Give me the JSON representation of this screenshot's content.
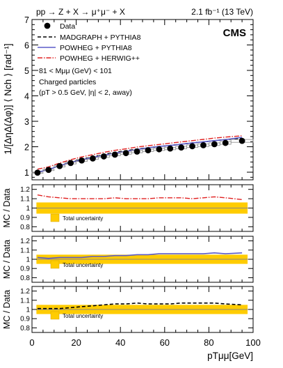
{
  "header": {
    "process": "pp → Z + X → μ⁺μ⁻ + X",
    "luminosity": "2.1 fb⁻¹ (13 TeV)",
    "experiment": "CMS"
  },
  "legend": {
    "entries": [
      {
        "label": "Data",
        "style": "marker",
        "color": "#000000"
      },
      {
        "label": "MADGRAPH + PYTHIA8",
        "style": "dashed",
        "color": "#000000"
      },
      {
        "label": "POWHEG + PYTHIA8",
        "style": "solid",
        "color": "#5b5bc8"
      },
      {
        "label": "POWHEG + HERWIG++",
        "style": "dashdot",
        "color": "#e02020"
      }
    ],
    "cuts": {
      "mass": "81 < Mμμ (GeV) < 101",
      "particles": "Charged particles",
      "selection": "(pT > 0.5 GeV, |η| < 2, away)"
    }
  },
  "ratio_panels": {
    "ylabel": "MC / Data",
    "band_label": "Total uncertainty",
    "band_color": "#ffcc00",
    "ylim": [
      0.75,
      1.25
    ],
    "yticks": [
      "0.8",
      "0.9",
      "1",
      "1.1",
      "1.2"
    ]
  },
  "chart_data": {
    "type": "line",
    "ylabel": "1/[ΔηΔ(Δφ)] ⟨ Nch ⟩ [rad⁻¹]",
    "xlabel": "pTμμ[GeV]",
    "xlim": [
      0,
      100
    ],
    "ylim": [
      0.7,
      7
    ],
    "xticks": [
      0,
      20,
      40,
      60,
      80,
      100
    ],
    "yticks": [
      1,
      2,
      3,
      4,
      5,
      6,
      7
    ],
    "x": [
      2.5,
      7.5,
      12.5,
      17.5,
      22.5,
      27.5,
      32.5,
      37.5,
      42.5,
      47.5,
      52.5,
      57.5,
      62.5,
      67.5,
      72.5,
      77.5,
      82.5,
      87.5,
      95
    ],
    "series": [
      {
        "name": "Data",
        "values": [
          0.98,
          1.09,
          1.24,
          1.36,
          1.46,
          1.54,
          1.62,
          1.69,
          1.75,
          1.81,
          1.86,
          1.9,
          1.93,
          1.97,
          2.02,
          2.06,
          2.1,
          2.15,
          2.23
        ]
      },
      {
        "name": "MADGRAPH + PYTHIA8",
        "values": [
          1.0,
          1.11,
          1.26,
          1.39,
          1.51,
          1.6,
          1.7,
          1.78,
          1.84,
          1.91,
          1.96,
          2.01,
          2.05,
          2.1,
          2.15,
          2.19,
          2.24,
          2.28,
          2.33
        ]
      },
      {
        "name": "POWHEG + PYTHIA8",
        "values": [
          1.0,
          1.1,
          1.26,
          1.38,
          1.49,
          1.58,
          1.67,
          1.75,
          1.82,
          1.89,
          1.96,
          2.01,
          2.05,
          2.1,
          2.15,
          2.19,
          2.24,
          2.28,
          2.37
        ]
      },
      {
        "name": "POWHEG + HERWIG++",
        "values": [
          1.12,
          1.21,
          1.36,
          1.49,
          1.6,
          1.69,
          1.78,
          1.86,
          1.92,
          1.99,
          2.04,
          2.09,
          2.14,
          2.19,
          2.24,
          2.29,
          2.34,
          2.38,
          2.43
        ]
      }
    ],
    "ratios": [
      {
        "name": "POWHEG + HERWIG++",
        "band_half_width": 0.06,
        "values": [
          1.14,
          1.12,
          1.11,
          1.1,
          1.1,
          1.1,
          1.1,
          1.11,
          1.1,
          1.1,
          1.1,
          1.11,
          1.11,
          1.11,
          1.1,
          1.11,
          1.12,
          1.11,
          1.09
        ]
      },
      {
        "name": "POWHEG + PYTHIA8",
        "band_half_width": 0.05,
        "values": [
          1.02,
          1.01,
          1.02,
          1.02,
          1.02,
          1.03,
          1.03,
          1.04,
          1.04,
          1.05,
          1.05,
          1.06,
          1.06,
          1.06,
          1.06,
          1.06,
          1.07,
          1.06,
          1.07
        ]
      },
      {
        "name": "MADGRAPH + PYTHIA8",
        "band_half_width": 0.05,
        "values": [
          1.01,
          1.01,
          1.01,
          1.02,
          1.03,
          1.04,
          1.05,
          1.06,
          1.06,
          1.07,
          1.06,
          1.06,
          1.06,
          1.07,
          1.07,
          1.07,
          1.07,
          1.06,
          1.05
        ]
      }
    ]
  }
}
